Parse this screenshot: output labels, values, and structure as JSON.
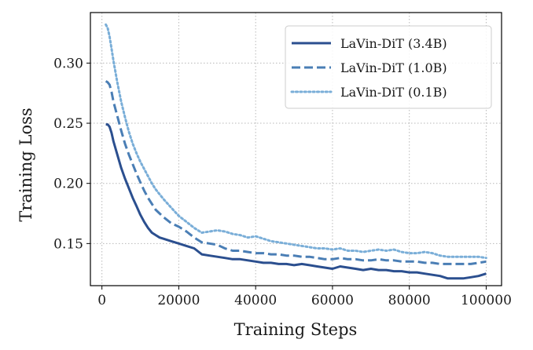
{
  "chart_data": {
    "type": "line",
    "xlabel": "Training Steps",
    "ylabel": "Training Loss",
    "xlim": [
      -3000,
      104000
    ],
    "ylim": [
      0.115,
      0.342
    ],
    "xticks": [
      0,
      20000,
      40000,
      60000,
      80000,
      100000
    ],
    "yticks": [
      0.15,
      0.2,
      0.25,
      0.3
    ],
    "grid": true,
    "legend_position": "top-right",
    "series": [
      {
        "name": "LaVin-DiT (3.4B)",
        "style": "solid",
        "color": "#2b4f8f",
        "x": [
          1000,
          1500,
          2000,
          2500,
          3000,
          4000,
          5000,
          6000,
          7000,
          8000,
          9000,
          10000,
          11000,
          12000,
          13000,
          14000,
          15000,
          16000,
          18000,
          20000,
          22000,
          24000,
          26000,
          28000,
          30000,
          32000,
          34000,
          36000,
          38000,
          40000,
          42000,
          44000,
          46000,
          48000,
          50000,
          52000,
          54000,
          56000,
          58000,
          60000,
          62000,
          64000,
          66000,
          68000,
          70000,
          72000,
          74000,
          76000,
          78000,
          80000,
          82000,
          84000,
          86000,
          88000,
          90000,
          92000,
          94000,
          96000,
          98000,
          100000
        ],
        "y": [
          0.249,
          0.249,
          0.247,
          0.242,
          0.235,
          0.224,
          0.213,
          0.204,
          0.196,
          0.188,
          0.181,
          0.174,
          0.168,
          0.163,
          0.159,
          0.157,
          0.155,
          0.154,
          0.152,
          0.15,
          0.148,
          0.146,
          0.141,
          0.14,
          0.139,
          0.138,
          0.137,
          0.137,
          0.136,
          0.135,
          0.134,
          0.134,
          0.133,
          0.133,
          0.132,
          0.133,
          0.132,
          0.131,
          0.13,
          0.129,
          0.131,
          0.13,
          0.129,
          0.128,
          0.129,
          0.128,
          0.128,
          0.127,
          0.127,
          0.126,
          0.126,
          0.125,
          0.124,
          0.123,
          0.121,
          0.121,
          0.121,
          0.122,
          0.123,
          0.125
        ]
      },
      {
        "name": "LaVin-DiT (1.0B)",
        "style": "dashed",
        "color": "#4a7eb5",
        "x": [
          1000,
          1500,
          2000,
          2500,
          3000,
          4000,
          5000,
          6000,
          7000,
          8000,
          9000,
          10000,
          11000,
          12000,
          13000,
          14000,
          15000,
          16000,
          18000,
          20000,
          22000,
          24000,
          26000,
          28000,
          30000,
          32000,
          34000,
          36000,
          38000,
          40000,
          42000,
          44000,
          46000,
          48000,
          50000,
          52000,
          54000,
          56000,
          58000,
          60000,
          62000,
          64000,
          66000,
          68000,
          70000,
          72000,
          74000,
          76000,
          78000,
          80000,
          82000,
          84000,
          86000,
          88000,
          90000,
          92000,
          94000,
          96000,
          98000,
          100000
        ],
        "y": [
          0.285,
          0.284,
          0.282,
          0.276,
          0.268,
          0.256,
          0.244,
          0.233,
          0.224,
          0.216,
          0.208,
          0.201,
          0.194,
          0.188,
          0.183,
          0.178,
          0.175,
          0.172,
          0.167,
          0.164,
          0.16,
          0.155,
          0.151,
          0.15,
          0.149,
          0.146,
          0.144,
          0.144,
          0.143,
          0.142,
          0.142,
          0.141,
          0.141,
          0.14,
          0.14,
          0.139,
          0.139,
          0.138,
          0.137,
          0.137,
          0.138,
          0.137,
          0.137,
          0.136,
          0.136,
          0.137,
          0.136,
          0.136,
          0.135,
          0.135,
          0.135,
          0.134,
          0.134,
          0.133,
          0.133,
          0.133,
          0.133,
          0.133,
          0.134,
          0.135
        ]
      },
      {
        "name": "LaVin-DiT (0.1B)",
        "style": "dotted",
        "color": "#7aaed8",
        "x": [
          1000,
          1500,
          2000,
          2500,
          3000,
          4000,
          5000,
          6000,
          7000,
          8000,
          9000,
          10000,
          11000,
          12000,
          13000,
          14000,
          15000,
          16000,
          18000,
          20000,
          22000,
          24000,
          26000,
          28000,
          30000,
          32000,
          34000,
          36000,
          38000,
          40000,
          42000,
          44000,
          46000,
          48000,
          50000,
          52000,
          54000,
          56000,
          58000,
          60000,
          62000,
          64000,
          66000,
          68000,
          70000,
          72000,
          74000,
          76000,
          78000,
          80000,
          82000,
          84000,
          86000,
          88000,
          90000,
          92000,
          94000,
          96000,
          98000,
          100000
        ],
        "y": [
          0.332,
          0.329,
          0.322,
          0.312,
          0.302,
          0.284,
          0.268,
          0.255,
          0.243,
          0.233,
          0.225,
          0.218,
          0.212,
          0.206,
          0.2,
          0.195,
          0.191,
          0.187,
          0.18,
          0.173,
          0.168,
          0.163,
          0.159,
          0.16,
          0.161,
          0.16,
          0.158,
          0.157,
          0.155,
          0.156,
          0.154,
          0.152,
          0.151,
          0.15,
          0.149,
          0.148,
          0.147,
          0.146,
          0.146,
          0.145,
          0.146,
          0.144,
          0.144,
          0.143,
          0.144,
          0.145,
          0.144,
          0.145,
          0.143,
          0.142,
          0.142,
          0.143,
          0.142,
          0.14,
          0.139,
          0.139,
          0.139,
          0.139,
          0.139,
          0.138
        ]
      }
    ]
  }
}
